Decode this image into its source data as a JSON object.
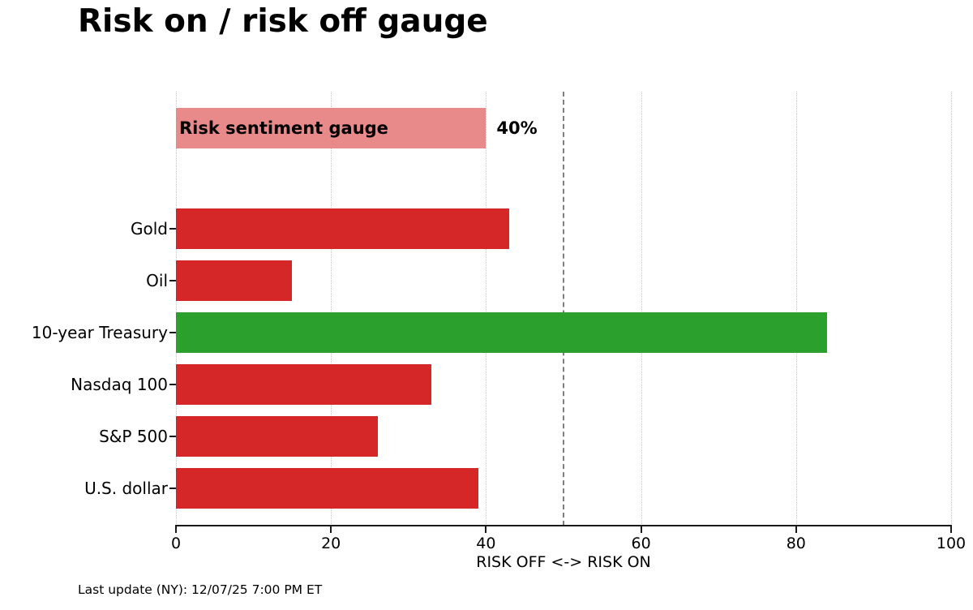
{
  "title": "Risk on / risk off gauge",
  "footer": "Last update (NY): 12/07/25 7:00 PM ET",
  "chart_data": {
    "type": "bar",
    "orientation": "horizontal",
    "title": "Risk on / risk off gauge",
    "xlabel": "RISK OFF <-> RISK ON",
    "xlim": [
      0,
      100
    ],
    "xticks": [
      0,
      20,
      40,
      60,
      80,
      100
    ],
    "grid": "vertical dotted gridlines at each x tick",
    "reference_line": {
      "x": 50,
      "style": "dashed",
      "color": "#7f7f7f"
    },
    "gauge": {
      "label": "Risk sentiment gauge",
      "value": 40,
      "value_label": "40%",
      "color": "#e88a89"
    },
    "categories": [
      "Gold",
      "Oil",
      "10-year Treasury",
      "Nasdaq 100",
      "S&P 500",
      "U.S. dollar"
    ],
    "values": [
      43,
      15,
      84,
      33,
      26,
      39
    ],
    "bar_colors": [
      "#d62728",
      "#d62728",
      "#2ca02c",
      "#d62728",
      "#d62728",
      "#d62728"
    ],
    "palette": {
      "risk_off_red": "#d62728",
      "risk_on_green": "#2ca02c",
      "gauge_pink": "#e88a89"
    }
  }
}
